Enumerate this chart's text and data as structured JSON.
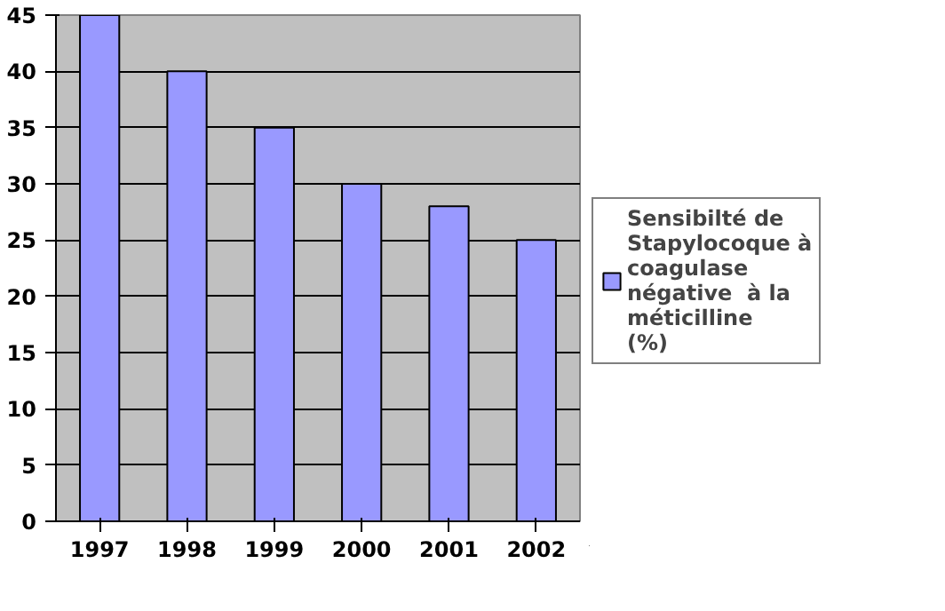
{
  "chart_data": {
    "type": "bar",
    "categories": [
      "1997",
      "1998",
      "1999",
      "2000",
      "2001",
      "2002"
    ],
    "series": [
      {
        "name": "Sensibilté de Stapylocoque à coagulase négative  à la méticilline (%)",
        "color": "#9999ff",
        "values": [
          45,
          40,
          35,
          30,
          28,
          25
        ]
      }
    ],
    "ylim": [
      0,
      45
    ],
    "yticks": [
      0,
      5,
      10,
      15,
      20,
      25,
      30,
      35,
      40,
      45
    ],
    "grid": "y",
    "legend": "right"
  }
}
